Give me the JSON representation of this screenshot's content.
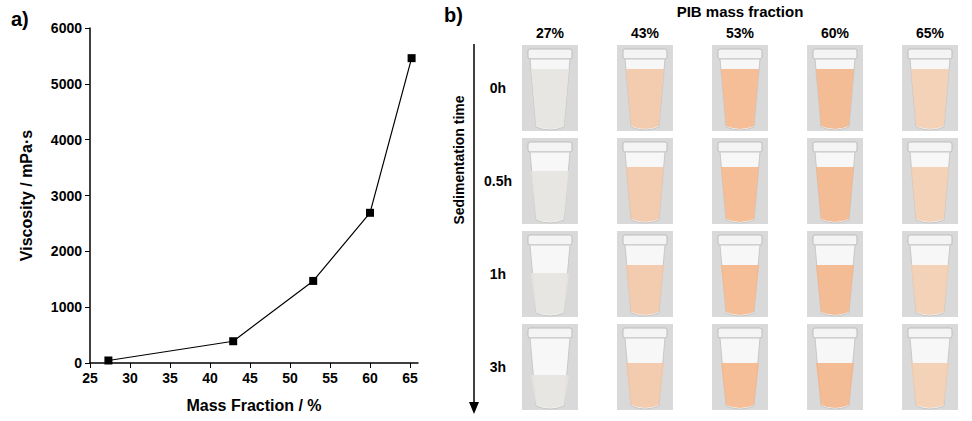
{
  "chart_data": {
    "type": "line",
    "title": "a)",
    "x_label": "Mass Fraction / %",
    "y_label": "Viscosity / mPa·s",
    "x": [
      27.3,
      42.9,
      52.9,
      60.0,
      65.2
    ],
    "values": [
      45,
      390,
      1470,
      2690,
      5460
    ],
    "color": "#000000",
    "marker": "square",
    "xlim": [
      25,
      66
    ],
    "xticks": [
      25,
      30,
      35,
      40,
      45,
      50,
      55,
      60,
      65
    ],
    "ylim": [
      0,
      6000
    ],
    "yticks": [
      0,
      1000,
      2000,
      3000,
      4000,
      5000,
      6000
    ],
    "grid": false
  },
  "photo_grid": {
    "label": "b)",
    "title": "PIB mass fraction",
    "columns": [
      "27%",
      "43%",
      "53%",
      "60%",
      "65%"
    ],
    "row_title": "Sedimentation time",
    "rows": [
      "0h",
      "0.5h",
      "1h",
      "3h"
    ]
  }
}
